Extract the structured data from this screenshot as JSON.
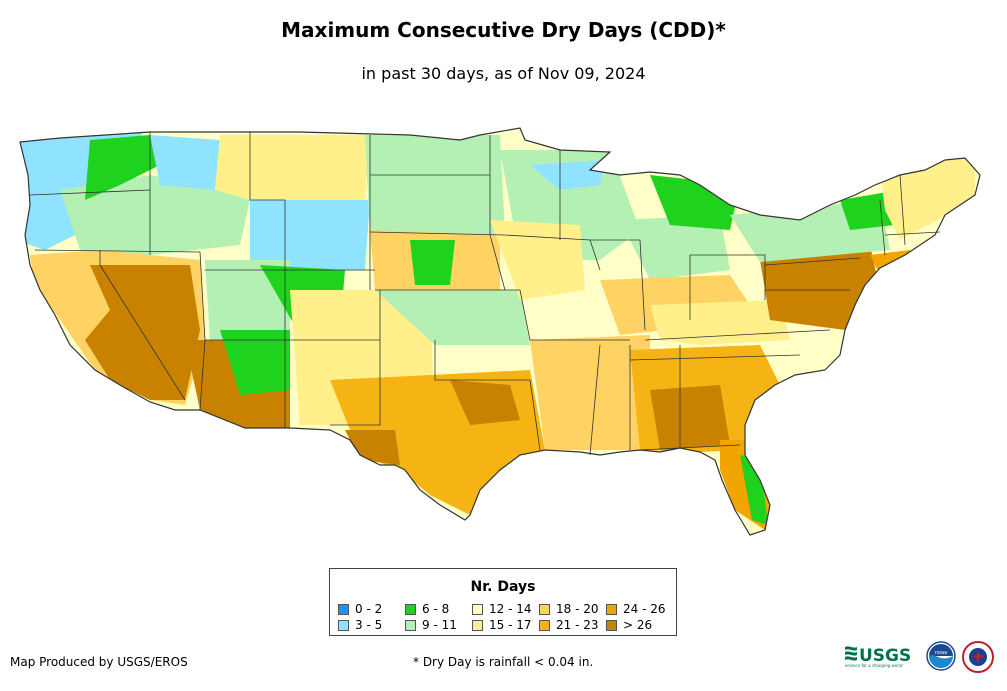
{
  "title": "Maximum Consecutive Dry Days (CDD)*",
  "subtitle": "in past 30 days, as of Nov 09, 2024",
  "legend": {
    "title": "Nr. Days",
    "items": [
      {
        "label": "0 - 2",
        "color": "#1e90ff"
      },
      {
        "label": "3 - 5",
        "color": "#8fe3ff"
      },
      {
        "label": "6 - 8",
        "color": "#1ed21e"
      },
      {
        "label": "9 - 11",
        "color": "#b4f0b4"
      },
      {
        "label": "12 - 14",
        "color": "#ffffc8"
      },
      {
        "label": "15 - 17",
        "color": "#fff08c"
      },
      {
        "label": "18 - 20",
        "color": "#ffd264"
      },
      {
        "label": "21 - 23",
        "color": "#f5b414"
      },
      {
        "label": "24 - 26",
        "color": "#f0a500"
      },
      {
        "label": "> 26",
        "color": "#c88200"
      }
    ]
  },
  "credit": "Map Produced by USGS/EROS",
  "footnote": "* Dry Day is rainfall < 0.04 in.",
  "logos": {
    "usgs": {
      "text": "USGS",
      "tagline": "science for a changing world"
    },
    "noaa": {
      "text": "noaa"
    }
  }
}
